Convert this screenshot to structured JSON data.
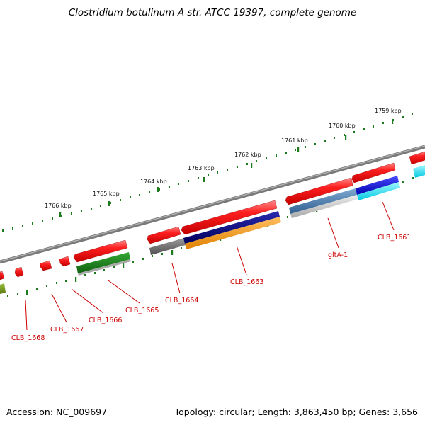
{
  "title": "Clostridium botulinum A str. ATCC 19397, complete genome",
  "footer": {
    "accession": "Accession: NC_009697",
    "summary": "Topology: circular; Length: 3,863,450 bp; Genes: 3,656"
  },
  "scale": {
    "ticks": [
      "1759 kbp",
      "1760 kbp",
      "1761 kbp",
      "1762 kbp",
      "1763 kbp",
      "1764 kbp",
      "1765 kbp",
      "1766 kbp"
    ]
  },
  "genes": [
    "CLB_1661",
    "gltA-1",
    "CLB_1663",
    "CLB_1664",
    "CLB_1665",
    "CLB_1666",
    "CLB_1667",
    "CLB_1668"
  ],
  "colors": {
    "gene": "#ff1a1a",
    "label": "#cc0000",
    "tick": "#1d7a1d",
    "backbone": "#7a7a7a",
    "green_feature": "#1e8c1e",
    "navy_feature": "#000080",
    "orange_feature": "#ff9900",
    "steel_feature": "#4f7fb0",
    "blue_feature": "#1414ee",
    "cyan_feature": "#00e0f0",
    "gray_feature": "#666666"
  }
}
